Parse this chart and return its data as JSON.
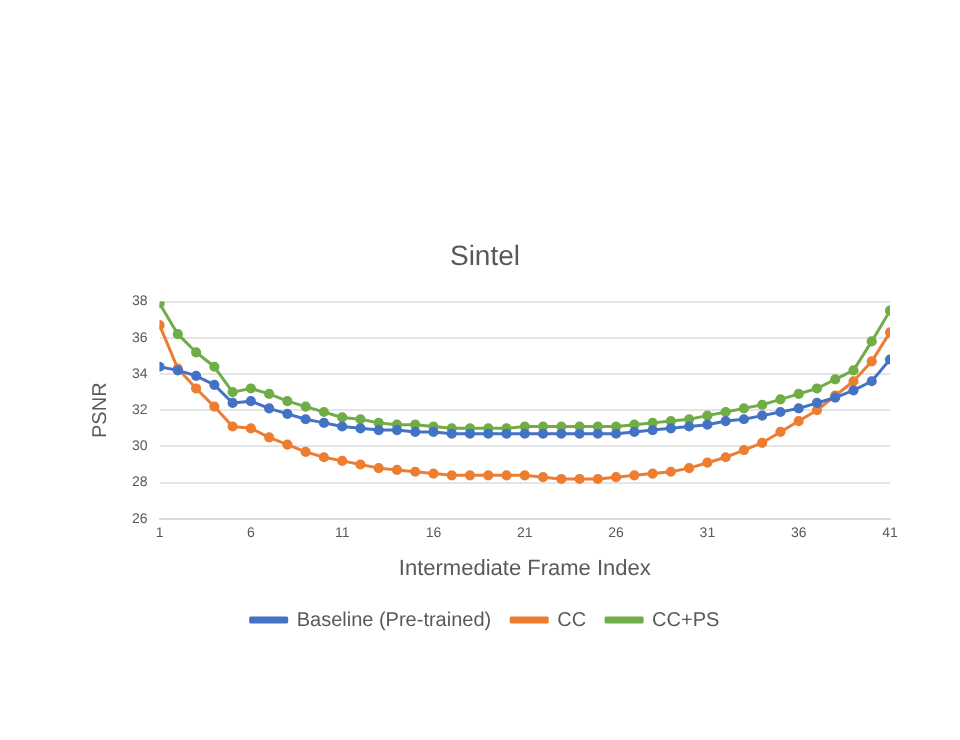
{
  "chart_data": {
    "type": "line",
    "title": "Sintel",
    "xlabel": "Intermediate Frame Index",
    "ylabel": "PSNR",
    "x": [
      1,
      2,
      3,
      4,
      5,
      6,
      7,
      8,
      9,
      10,
      11,
      12,
      13,
      14,
      15,
      16,
      17,
      18,
      19,
      20,
      21,
      22,
      23,
      24,
      25,
      26,
      27,
      28,
      29,
      30,
      31,
      32,
      33,
      34,
      35,
      36,
      37,
      38,
      39,
      40,
      41
    ],
    "series": [
      {
        "name": "Baseline (Pre-trained)",
        "color": "#4472c4",
        "values": [
          34.4,
          34.2,
          33.9,
          33.4,
          32.4,
          32.5,
          32.1,
          31.8,
          31.5,
          31.3,
          31.1,
          31.0,
          30.9,
          30.9,
          30.8,
          30.8,
          30.7,
          30.7,
          30.7,
          30.7,
          30.7,
          30.7,
          30.7,
          30.7,
          30.7,
          30.7,
          30.8,
          30.9,
          31.0,
          31.1,
          31.2,
          31.4,
          31.5,
          31.7,
          31.9,
          32.1,
          32.4,
          32.7,
          33.1,
          33.6,
          34.8
        ]
      },
      {
        "name": "CC",
        "color": "#ed7d31",
        "values": [
          36.7,
          34.3,
          33.2,
          32.2,
          31.1,
          31.0,
          30.5,
          30.1,
          29.7,
          29.4,
          29.2,
          29.0,
          28.8,
          28.7,
          28.6,
          28.5,
          28.4,
          28.4,
          28.4,
          28.4,
          28.4,
          28.3,
          28.2,
          28.2,
          28.2,
          28.3,
          28.4,
          28.5,
          28.6,
          28.8,
          29.1,
          29.4,
          29.8,
          30.2,
          30.8,
          31.4,
          32.0,
          32.8,
          33.6,
          34.7,
          36.3
        ]
      },
      {
        "name": "CC+PS",
        "color": "#70ad47",
        "values": [
          37.9,
          36.2,
          35.2,
          34.4,
          33.0,
          33.2,
          32.9,
          32.5,
          32.2,
          31.9,
          31.6,
          31.5,
          31.3,
          31.2,
          31.2,
          31.1,
          31.0,
          31.0,
          31.0,
          31.0,
          31.1,
          31.1,
          31.1,
          31.1,
          31.1,
          31.1,
          31.2,
          31.3,
          31.4,
          31.5,
          31.7,
          31.9,
          32.1,
          32.3,
          32.6,
          32.9,
          33.2,
          33.7,
          34.2,
          35.8,
          37.5
        ]
      }
    ],
    "xlim": [
      1,
      41
    ],
    "xticks": [
      1,
      6,
      11,
      16,
      21,
      26,
      31,
      36,
      41
    ],
    "ylim": [
      26,
      38
    ],
    "yticks": [
      26,
      28,
      30,
      32,
      34,
      36,
      38
    ],
    "grid": "y",
    "legend": "bottom",
    "marker": "circle",
    "line_style": "solid"
  }
}
